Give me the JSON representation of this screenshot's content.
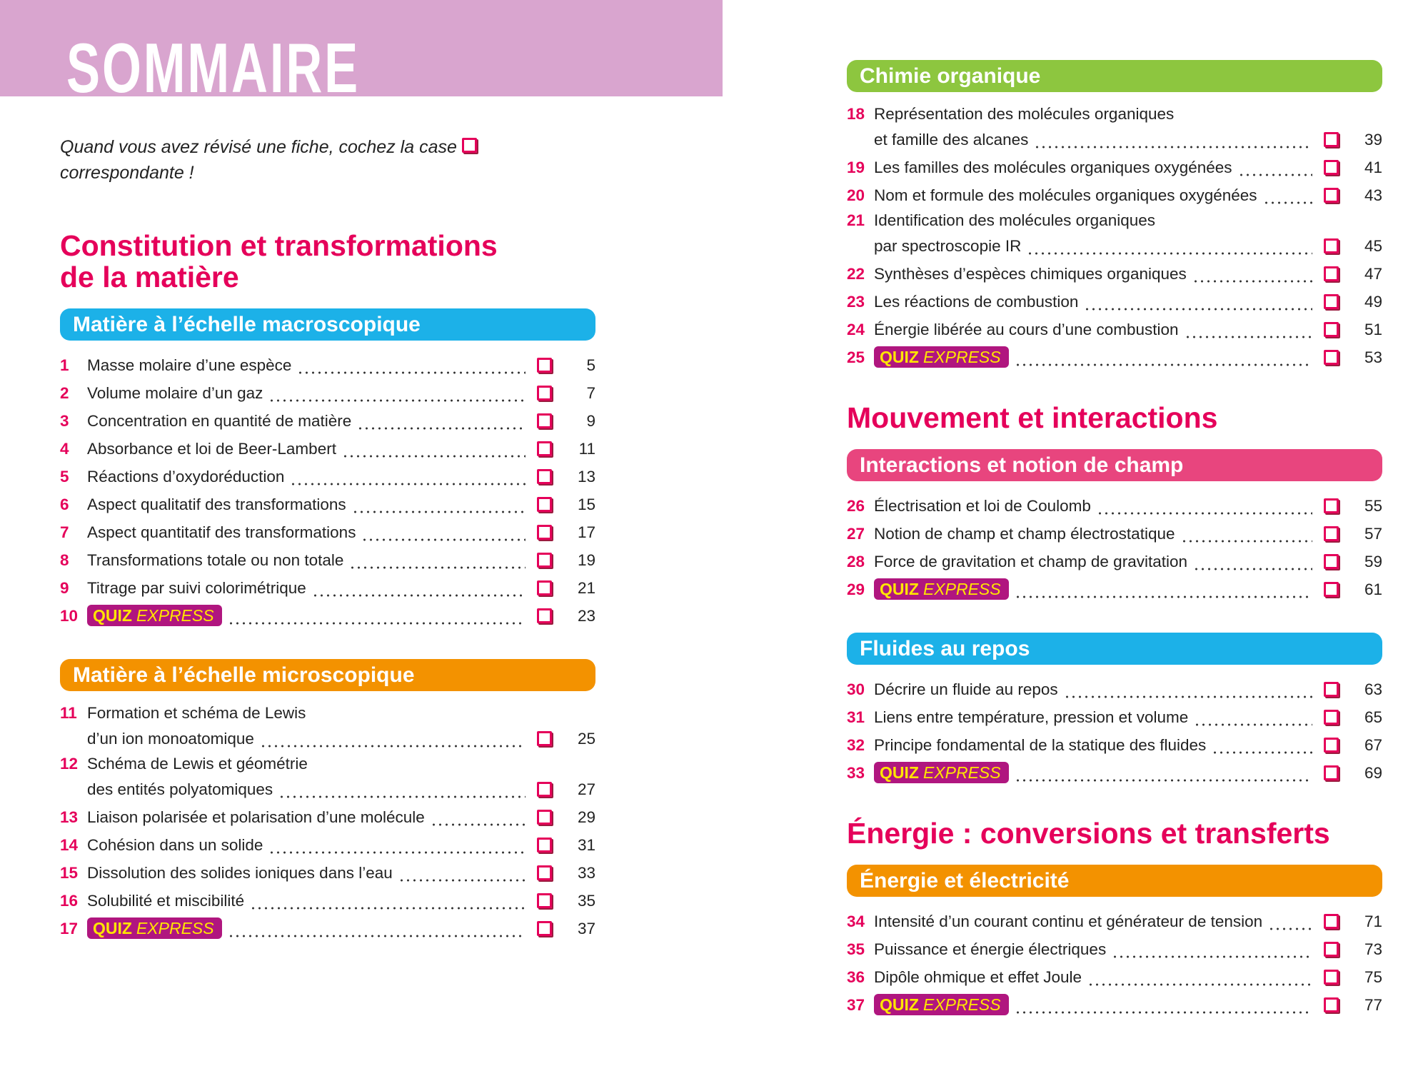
{
  "header": {
    "title": "SOMMAIRE",
    "instruction": [
      "Quand vous avez révisé une fiche, cochez la case",
      "correspondante !"
    ]
  },
  "columns": [
    [
      {
        "heading": [
          "Constitution et transformations",
          "de la matière"
        ],
        "subsections": [
          {
            "title": "Matière à l’échelle macroscopique",
            "color": "#1cb1e8",
            "entries": [
              {
                "num": 1,
                "title": [
                  "Masse molaire d’une espèce"
                ],
                "page": 5
              },
              {
                "num": 2,
                "title": [
                  "Volume molaire d’un gaz"
                ],
                "page": 7
              },
              {
                "num": 3,
                "title": [
                  "Concentration en quantité de matière"
                ],
                "page": 9
              },
              {
                "num": 4,
                "title": [
                  "Absorbance et loi de Beer-Lambert"
                ],
                "page": 11
              },
              {
                "num": 5,
                "title": [
                  "Réactions d’oxydoréduction"
                ],
                "page": 13
              },
              {
                "num": 6,
                "title": [
                  "Aspect qualitatif des transformations"
                ],
                "page": 15
              },
              {
                "num": 7,
                "title": [
                  "Aspect quantitatif des transformations"
                ],
                "page": 17
              },
              {
                "num": 8,
                "title": [
                  "Transformations totale ou non totale"
                ],
                "page": 19
              },
              {
                "num": 9,
                "title": [
                  "Titrage par suivi colorimétrique"
                ],
                "page": 21
              },
              {
                "num": 10,
                "badge": [
                  "QUIZ",
                  "EXPRESS"
                ],
                "page": 23
              }
            ]
          },
          {
            "title": "Matière à l’échelle microscopique",
            "color": "#f39200",
            "entries": [
              {
                "num": 11,
                "title": [
                  "Formation et schéma de Lewis",
                  "d’un ion monoatomique"
                ],
                "page": 25
              },
              {
                "num": 12,
                "title": [
                  "Schéma de Lewis et géométrie",
                  "des entités polyatomiques"
                ],
                "page": 27
              },
              {
                "num": 13,
                "title": [
                  "Liaison polarisée et polarisation d’une molécule"
                ],
                "page": 29
              },
              {
                "num": 14,
                "title": [
                  "Cohésion dans un solide"
                ],
                "page": 31
              },
              {
                "num": 15,
                "title": [
                  "Dissolution des solides ioniques dans l’eau"
                ],
                "page": 33
              },
              {
                "num": 16,
                "title": [
                  "Solubilité et miscibilité"
                ],
                "page": 35
              },
              {
                "num": 17,
                "badge": [
                  "QUIZ",
                  "EXPRESS"
                ],
                "page": 37
              }
            ]
          }
        ]
      }
    ],
    [
      {
        "subsections": [
          {
            "title": "Chimie organique",
            "color": "#8dc63f",
            "entries": [
              {
                "num": 18,
                "title": [
                  "Représentation des molécules organiques",
                  "et famille des alcanes"
                ],
                "page": 39
              },
              {
                "num": 19,
                "title": [
                  "Les familles des molécules organiques oxygénées"
                ],
                "page": 41
              },
              {
                "num": 20,
                "title": [
                  "Nom et formule des molécules organiques oxygénées"
                ],
                "page": 43
              },
              {
                "num": 21,
                "title": [
                  "Identification des molécules organiques",
                  "par spectroscopie IR"
                ],
                "page": 45
              },
              {
                "num": 22,
                "title": [
                  "Synthèses d’espèces chimiques organiques"
                ],
                "page": 47
              },
              {
                "num": 23,
                "title": [
                  "Les réactions de combustion"
                ],
                "page": 49
              },
              {
                "num": 24,
                "title": [
                  "Énergie libérée au cours d’une combustion"
                ],
                "page": 51
              },
              {
                "num": 25,
                "badge": [
                  "QUIZ",
                  "EXPRESS"
                ],
                "page": 53
              }
            ]
          }
        ]
      },
      {
        "heading": [
          "Mouvement et interactions"
        ],
        "subsections": [
          {
            "title": "Interactions et notion de champ",
            "color": "#e8457e",
            "entries": [
              {
                "num": 26,
                "title": [
                  "Électrisation et loi de Coulomb"
                ],
                "page": 55
              },
              {
                "num": 27,
                "title": [
                  "Notion de champ et champ électrostatique"
                ],
                "page": 57
              },
              {
                "num": 28,
                "title": [
                  "Force de gravitation et champ de gravitation"
                ],
                "page": 59
              },
              {
                "num": 29,
                "badge": [
                  "QUIZ",
                  "EXPRESS"
                ],
                "page": 61
              }
            ]
          },
          {
            "title": "Fluides au repos",
            "color": "#1cb1e8",
            "entries": [
              {
                "num": 30,
                "title": [
                  "Décrire un fluide au repos"
                ],
                "page": 63
              },
              {
                "num": 31,
                "title": [
                  "Liens entre température, pression et volume"
                ],
                "page": 65
              },
              {
                "num": 32,
                "title": [
                  "Principe fondamental de la statique des fluides"
                ],
                "page": 67
              },
              {
                "num": 33,
                "badge": [
                  "QUIZ",
                  "EXPRESS"
                ],
                "page": 69
              }
            ]
          }
        ]
      },
      {
        "heading": [
          "Énergie : conversions et transferts"
        ],
        "subsections": [
          {
            "title": "Énergie et électricité",
            "color": "#f39200",
            "entries": [
              {
                "num": 34,
                "title": [
                  "Intensité d’un courant continu et générateur de tension"
                ],
                "page": 71
              },
              {
                "num": 35,
                "title": [
                  "Puissance et énergie électriques"
                ],
                "page": 73
              },
              {
                "num": 36,
                "title": [
                  "Dipôle ohmique et effet Joule"
                ],
                "page": 75
              },
              {
                "num": 37,
                "badge": [
                  "QUIZ",
                  "EXPRESS"
                ],
                "page": 77
              }
            ]
          }
        ]
      }
    ]
  ]
}
